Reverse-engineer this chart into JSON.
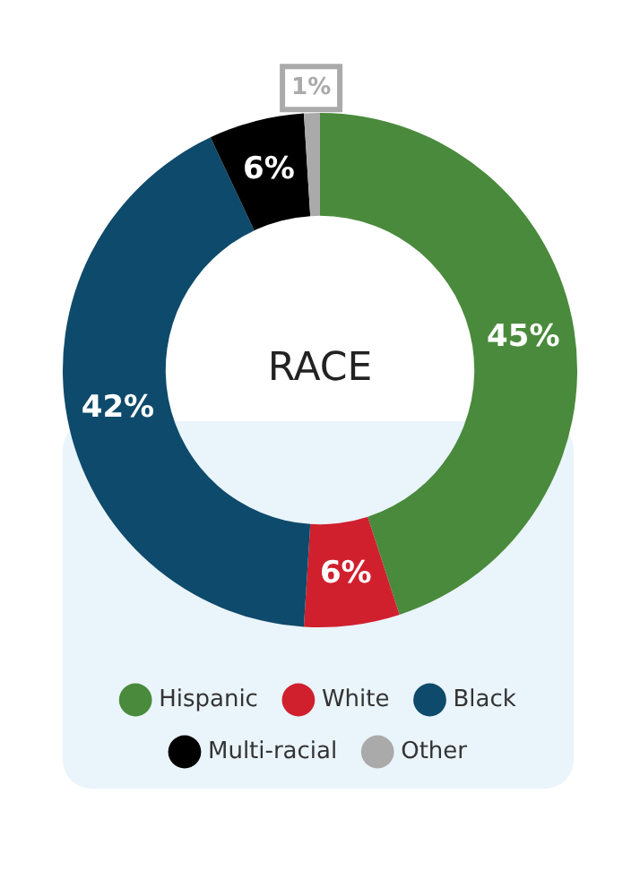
{
  "chart_data": {
    "type": "donut",
    "title": "RACE",
    "categories": [
      "Hispanic",
      "White",
      "Black",
      "Multi-racial",
      "Other"
    ],
    "values": [
      45,
      6,
      42,
      6,
      1
    ],
    "colors": [
      "#4a8a3c",
      "#d0202e",
      "#0e4a6b",
      "#000000",
      "#aaaaaa"
    ],
    "value_labels": [
      "45%",
      "6%",
      "42%",
      "6%",
      "1%"
    ],
    "legend": "bottom"
  }
}
